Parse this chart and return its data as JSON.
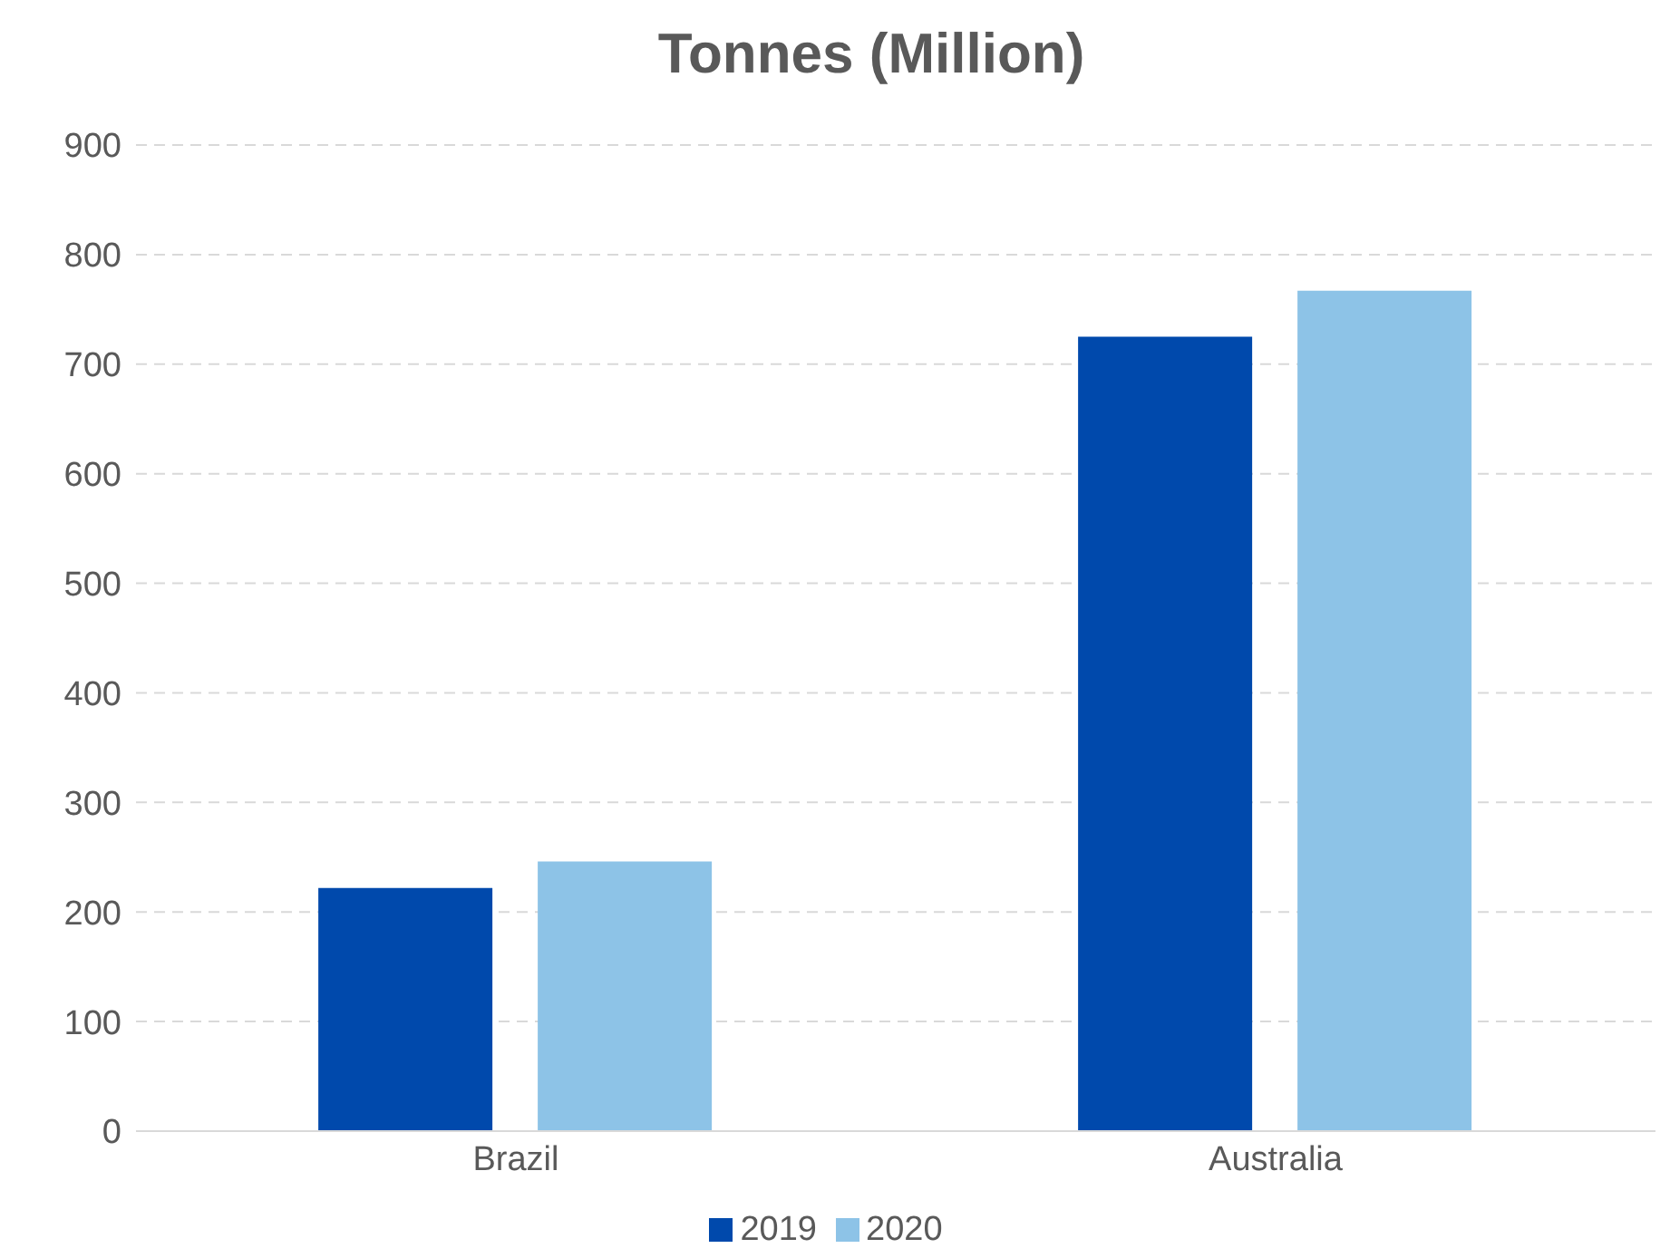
{
  "chart_data": {
    "type": "bar",
    "title": "Tonnes (Million)",
    "categories": [
      "Brazil",
      "Australia"
    ],
    "series": [
      {
        "name": "2019",
        "color": "#0049ac",
        "values": [
          222,
          725
        ]
      },
      {
        "name": "2020",
        "color": "#8dc3e7",
        "values": [
          246,
          767
        ]
      }
    ],
    "ylim": [
      0,
      900
    ],
    "yticks": [
      0,
      100,
      200,
      300,
      400,
      500,
      600,
      700,
      800,
      900
    ],
    "grid": "y",
    "legend": "bottom"
  }
}
